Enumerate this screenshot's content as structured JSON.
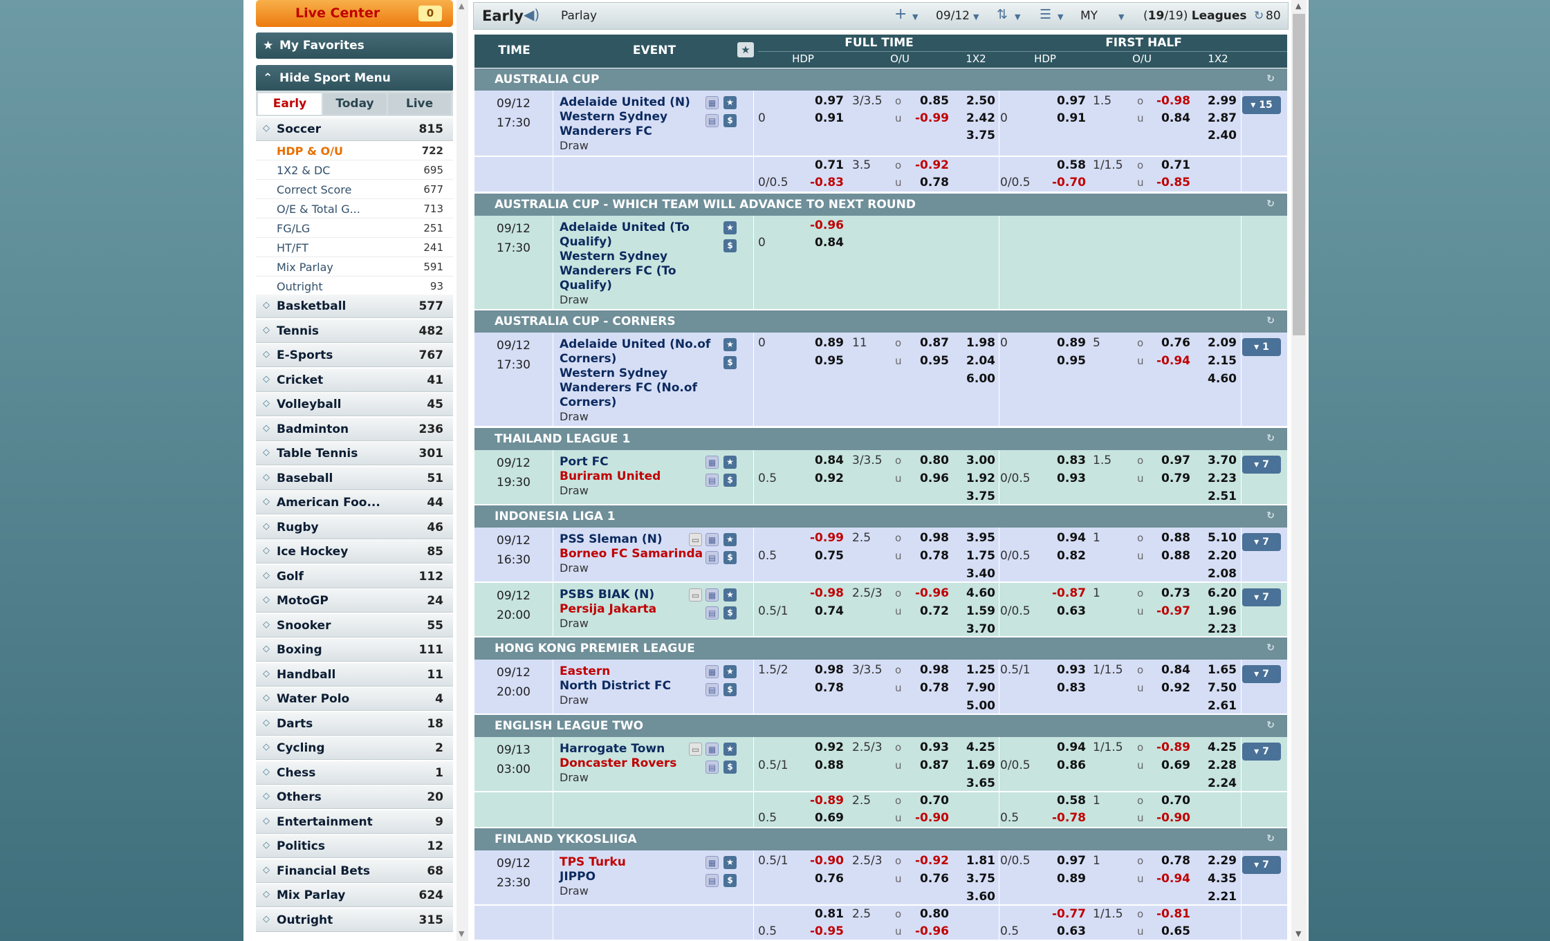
{
  "live_center": {
    "label": "Live Center",
    "count": "0"
  },
  "favorites": {
    "label": "My Favorites"
  },
  "sport_menu": {
    "label": "Hide Sport Menu"
  },
  "tabs": [
    "Early",
    "Today",
    "Live"
  ],
  "sports": [
    {
      "name": "Soccer",
      "count": "815"
    },
    {
      "name": "Basketball",
      "count": "577"
    },
    {
      "name": "Tennis",
      "count": "482"
    },
    {
      "name": "E-Sports",
      "count": "767"
    },
    {
      "name": "Cricket",
      "count": "41"
    },
    {
      "name": "Volleyball",
      "count": "45"
    },
    {
      "name": "Badminton",
      "count": "236"
    },
    {
      "name": "Table Tennis",
      "count": "301"
    },
    {
      "name": "Baseball",
      "count": "51"
    },
    {
      "name": "American Foo...",
      "count": "44"
    },
    {
      "name": "Rugby",
      "count": "46"
    },
    {
      "name": "Ice Hockey",
      "count": "85"
    },
    {
      "name": "Golf",
      "count": "112"
    },
    {
      "name": "MotoGP",
      "count": "24"
    },
    {
      "name": "Snooker",
      "count": "55"
    },
    {
      "name": "Boxing",
      "count": "111"
    },
    {
      "name": "Handball",
      "count": "11"
    },
    {
      "name": "Water Polo",
      "count": "4"
    },
    {
      "name": "Darts",
      "count": "18"
    },
    {
      "name": "Cycling",
      "count": "2"
    },
    {
      "name": "Chess",
      "count": "1"
    },
    {
      "name": "Others",
      "count": "20"
    },
    {
      "name": "Entertainment",
      "count": "9"
    },
    {
      "name": "Politics",
      "count": "12"
    },
    {
      "name": "Financial Bets",
      "count": "68"
    },
    {
      "name": "Mix Parlay",
      "count": "624"
    },
    {
      "name": "Outright",
      "count": "315"
    }
  ],
  "soccer_sub": [
    {
      "name": "HDP & O/U",
      "count": "722"
    },
    {
      "name": "1X2 & DC",
      "count": "695"
    },
    {
      "name": "Correct Score",
      "count": "677"
    },
    {
      "name": "O/E & Total G...",
      "count": "713"
    },
    {
      "name": "FG/LG",
      "count": "251"
    },
    {
      "name": "HT/FT",
      "count": "241"
    },
    {
      "name": "Mix Parlay",
      "count": "591"
    },
    {
      "name": "Outright",
      "count": "93"
    }
  ],
  "toolbar": {
    "mode": "Early",
    "parlay": "Parlay",
    "date": "09/12",
    "odds": "MY",
    "leagues_sel": "19",
    "leagues_total": "19",
    "leagues_label": "Leagues",
    "refresh": "80"
  },
  "headers": {
    "time": "TIME",
    "event": "EVENT",
    "full": "FULL TIME",
    "half": "FIRST HALF",
    "hdp": "HDP",
    "ou": "O/U",
    "x12": "1X2"
  },
  "groups": [
    {
      "name": "AUSTRALIA CUP",
      "matches": [
        {
          "date": "09/12",
          "time": "17:30",
          "teams": [
            "Adelaide United (N)",
            "Western Sydney",
            "Wanderers FC"
          ],
          "draw": "Draw",
          "more": "15",
          "lines": [
            {
              "ft_hdp": [
                "",
                ""
              ],
              "ft_hv": [
                "0.97",
                "0.91"
              ],
              "ft_ou": "3/3.5",
              "ft_ov": [
                "0.85",
                "-0.99"
              ],
              "ft_x": [
                "2.50",
                "2.42",
                "3.75"
              ],
              "h_hdp": [
                "",
                ""
              ],
              "h_hv": [
                "0.97",
                "0.91"
              ],
              "h_ou": "1.5",
              "h_ov": [
                "-0.98",
                "0.84"
              ],
              "h_x": [
                "2.99",
                "2.87",
                "2.40"
              ],
              "hdp0": "0",
              "hhdp0": "0"
            },
            {
              "ft_hdp": [
                "",
                "0/0.5"
              ],
              "ft_hv": [
                "0.71",
                "-0.83"
              ],
              "ft_ou": "3.5",
              "ft_ov": [
                "-0.92",
                "0.78"
              ],
              "h_hdp": [
                "",
                "0/0.5"
              ],
              "h_hv": [
                "0.58",
                "-0.70"
              ],
              "h_ou": "1/1.5",
              "h_ov": [
                "0.71",
                "-0.85"
              ]
            }
          ]
        }
      ]
    },
    {
      "name": "AUSTRALIA CUP - WHICH TEAM WILL ADVANCE TO NEXT ROUND",
      "matches": [
        {
          "date": "09/12",
          "time": "17:30",
          "teams": [
            "Adelaide United (To",
            "Qualify)",
            "Western Sydney",
            "Wanderers FC (To",
            "Qualify)"
          ],
          "draw": "Draw",
          "hdp": "0",
          "hv": [
            "-0.96",
            "0.84"
          ]
        }
      ]
    },
    {
      "name": "AUSTRALIA CUP - CORNERS",
      "matches": [
        {
          "date": "09/12",
          "time": "17:30",
          "teams": [
            "Adelaide United (No.of",
            "Corners)",
            "Western Sydney",
            "Wanderers FC (No.of",
            "Corners)"
          ],
          "draw": "Draw",
          "more": "1",
          "hdp": "0",
          "hv": [
            "0.89",
            "0.95"
          ],
          "ou": "11",
          "ov": [
            "0.87",
            "0.95"
          ],
          "x": [
            "1.98",
            "2.04",
            "6.00"
          ],
          "hhdp": "0",
          "hhv": [
            "0.89",
            "0.95"
          ],
          "hou": "5",
          "hov": [
            "0.76",
            "-0.94"
          ],
          "hx": [
            "2.09",
            "2.15",
            "4.60"
          ]
        }
      ]
    },
    {
      "name": "THAILAND LEAGUE 1",
      "matches": [
        {
          "date": "09/12",
          "time": "19:30",
          "teams": [
            "Port FC",
            "Buriram United"
          ],
          "draw": "Draw",
          "more": "7",
          "hdp": "0.5",
          "hv": [
            "0.84",
            "0.92"
          ],
          "ou": "3/3.5",
          "ov": [
            "0.80",
            "0.96"
          ],
          "x": [
            "3.00",
            "1.92",
            "3.75"
          ],
          "hhdp": "0/0.5",
          "hhv": [
            "0.83",
            "0.93"
          ],
          "hou": "1.5",
          "hov": [
            "0.97",
            "0.79"
          ],
          "hx": [
            "3.70",
            "2.23",
            "2.51"
          ]
        }
      ]
    },
    {
      "name": "INDONESIA LIGA 1",
      "matches": [
        {
          "date": "09/12",
          "time": "16:30",
          "teams": [
            "PSS Sleman (N)",
            "Borneo FC Samarinda"
          ],
          "draw": "Draw",
          "more": "7",
          "hdp": "0.5",
          "hv": [
            "-0.99",
            "0.75"
          ],
          "ou": "2.5",
          "ov": [
            "0.98",
            "0.78"
          ],
          "x": [
            "3.95",
            "1.75",
            "3.40"
          ],
          "hhdp": "0/0.5",
          "hhv": [
            "0.94",
            "0.82"
          ],
          "hou": "1",
          "hov": [
            "0.88",
            "0.88"
          ],
          "hx": [
            "5.10",
            "2.20",
            "2.08"
          ]
        },
        {
          "date": "09/12",
          "time": "20:00",
          "teams": [
            "PSBS BIAK (N)",
            "Persija Jakarta"
          ],
          "draw": "Draw",
          "more": "7",
          "hdp": "0.5/1",
          "hv": [
            "-0.98",
            "0.74"
          ],
          "ou": "2.5/3",
          "ov": [
            "-0.96",
            "0.72"
          ],
          "x": [
            "4.60",
            "1.59",
            "3.70"
          ],
          "hhdp": "0/0.5",
          "hhv": [
            "-0.87",
            "0.63"
          ],
          "hou": "1",
          "hov": [
            "0.73",
            "-0.97"
          ],
          "hx": [
            "6.20",
            "1.96",
            "2.23"
          ]
        }
      ]
    },
    {
      "name": "HONG KONG PREMIER LEAGUE",
      "matches": [
        {
          "date": "09/12",
          "time": "20:00",
          "teams": [
            "Eastern",
            "North District FC"
          ],
          "draw": "Draw",
          "more": "7",
          "hdp": "1.5/2",
          "hv": [
            "0.98",
            "0.78"
          ],
          "ou": "3/3.5",
          "ov": [
            "0.98",
            "0.78"
          ],
          "x": [
            "1.25",
            "7.90",
            "5.00"
          ],
          "hhdp": "0.5/1",
          "hhv": [
            "0.93",
            "0.83"
          ],
          "hou": "1/1.5",
          "hov": [
            "0.84",
            "0.92"
          ],
          "hx": [
            "1.65",
            "7.50",
            "2.61"
          ]
        }
      ]
    },
    {
      "name": "ENGLISH LEAGUE TWO",
      "matches": [
        {
          "date": "09/13",
          "time": "03:00",
          "teams": [
            "Harrogate Town",
            "Doncaster Rovers"
          ],
          "draw": "Draw",
          "more": "7",
          "hdp": "0.5/1",
          "hv": [
            "0.92",
            "0.88"
          ],
          "ou": "2.5/3",
          "ov": [
            "0.93",
            "0.87"
          ],
          "x": [
            "4.25",
            "1.69",
            "3.65"
          ],
          "hhdp": "0/0.5",
          "hhv": [
            "0.94",
            "0.86"
          ],
          "hou": "1/1.5",
          "hov": [
            "-0.89",
            "0.69"
          ],
          "hx": [
            "4.25",
            "2.28",
            "2.24"
          ],
          "alt": {
            "hdp": "0.5",
            "hv": [
              "-0.89",
              "0.69"
            ],
            "ou": "2.5",
            "ov": [
              "0.70",
              "-0.90"
            ],
            "hhdp": "0.5",
            "hhv": [
              "0.58",
              "-0.78"
            ],
            "hou": "1",
            "hov": [
              "0.70",
              "-0.90"
            ]
          }
        }
      ]
    },
    {
      "name": "FINLAND YKKOSLIIGA",
      "matches": [
        {
          "date": "09/12",
          "time": "23:30",
          "teams": [
            "TPS Turku",
            "JIPPO"
          ],
          "draw": "Draw",
          "more": "7",
          "hdp": "0.5/1",
          "hv": [
            "-0.90",
            "0.76"
          ],
          "ou": "2.5/3",
          "ov": [
            "-0.92",
            "0.76"
          ],
          "x": [
            "1.81",
            "3.75",
            "3.60"
          ],
          "hhdp": "0/0.5",
          "hhv": [
            "0.97",
            "0.89"
          ],
          "hou": "1",
          "hov": [
            "0.78",
            "-0.94"
          ],
          "hx": [
            "2.29",
            "4.35",
            "2.21"
          ],
          "alt": {
            "hdp": "0.5",
            "hv": [
              "0.81",
              "-0.95"
            ],
            "ou": "2.5",
            "ov": [
              "0.80",
              "-0.96"
            ],
            "hhdp": "0.5",
            "hhv": [
              "-0.77",
              "0.63"
            ],
            "hou": "1/1.5",
            "hov": [
              "-0.81",
              "0.65"
            ]
          }
        }
      ]
    }
  ]
}
